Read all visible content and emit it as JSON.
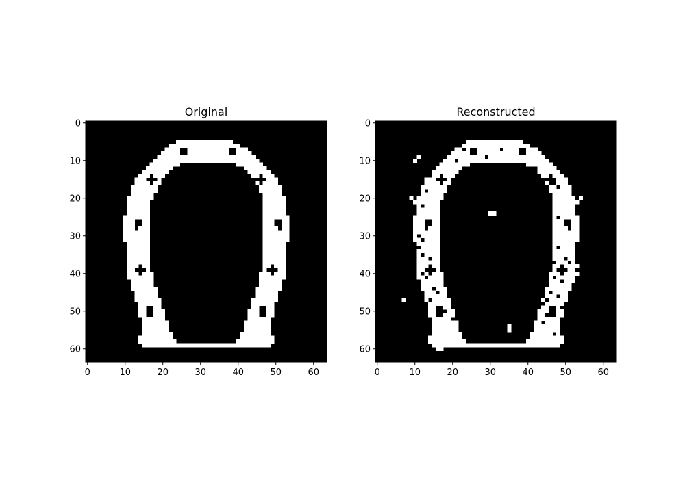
{
  "chart_data": [
    {
      "type": "heatmap",
      "title": "Original",
      "xlabel": "",
      "ylabel": "",
      "colormap": {
        "0": "#000000",
        "1": "#ffffff"
      },
      "xlim": [
        -0.5,
        63.5
      ],
      "ylim": [
        63.5,
        -0.5
      ],
      "xticks": [
        0,
        10,
        20,
        30,
        40,
        50,
        60
      ],
      "yticks": [
        0,
        10,
        20,
        30,
        40,
        50,
        60
      ],
      "grid": false,
      "shape": [
        64,
        64
      ],
      "white_runs_by_row": [
        [
          4,
          []
        ],
        [
          5,
          [
            [
              24,
              38
            ]
          ]
        ],
        [
          6,
          [
            [
              22,
              40
            ]
          ]
        ],
        [
          7,
          [
            [
              21,
              42
            ]
          ]
        ],
        [
          8,
          [
            [
              20,
              43
            ]
          ]
        ],
        [
          9,
          [
            [
              19,
              44
            ]
          ]
        ],
        [
          10,
          [
            [
              18,
              45
            ]
          ]
        ],
        [
          11,
          [
            [
              17,
              46
            ]
          ]
        ],
        [
          12,
          [
            [
              16,
              47
            ]
          ]
        ],
        [
          13,
          [
            [
              15,
              48
            ]
          ]
        ],
        [
          14,
          [
            [
              14,
              49
            ]
          ]
        ],
        [
          15,
          [
            [
              13,
              50
            ]
          ]
        ],
        [
          16,
          [
            [
              13,
              50
            ]
          ]
        ],
        [
          17,
          [
            [
              12,
              51
            ]
          ]
        ],
        [
          18,
          [
            [
              12,
              51
            ]
          ]
        ],
        [
          19,
          [
            [
              12,
              51
            ]
          ]
        ],
        [
          20,
          [
            [
              11,
              52
            ]
          ]
        ],
        [
          21,
          [
            [
              11,
              52
            ]
          ]
        ],
        [
          22,
          [
            [
              11,
              52
            ]
          ]
        ],
        [
          23,
          [
            [
              11,
              52
            ]
          ]
        ],
        [
          24,
          [
            [
              11,
              52
            ]
          ]
        ],
        [
          25,
          [
            [
              10,
              53
            ]
          ]
        ],
        [
          26,
          [
            [
              10,
              53
            ]
          ]
        ],
        [
          27,
          [
            [
              10,
              53
            ]
          ]
        ],
        [
          28,
          [
            [
              10,
              53
            ]
          ]
        ],
        [
          29,
          [
            [
              10,
              53
            ]
          ]
        ],
        [
          30,
          [
            [
              10,
              53
            ]
          ]
        ],
        [
          31,
          [
            [
              10,
              53
            ]
          ]
        ],
        [
          32,
          [
            [
              11,
              52
            ]
          ]
        ],
        [
          33,
          [
            [
              11,
              52
            ]
          ]
        ],
        [
          34,
          [
            [
              11,
              52
            ]
          ]
        ],
        [
          35,
          [
            [
              11,
              52
            ]
          ]
        ],
        [
          36,
          [
            [
              11,
              52
            ]
          ]
        ],
        [
          37,
          [
            [
              11,
              52
            ]
          ]
        ],
        [
          38,
          [
            [
              11,
              52
            ]
          ]
        ],
        [
          39,
          [
            [
              11,
              52
            ]
          ]
        ],
        [
          40,
          [
            [
              11,
              52
            ]
          ]
        ],
        [
          41,
          [
            [
              11,
              52
            ]
          ]
        ],
        [
          42,
          [
            [
              12,
              51
            ]
          ]
        ],
        [
          43,
          [
            [
              12,
              51
            ]
          ]
        ],
        [
          44,
          [
            [
              12,
              51
            ]
          ]
        ],
        [
          45,
          [
            [
              13,
              50
            ]
          ]
        ],
        [
          46,
          [
            [
              13,
              50
            ]
          ]
        ],
        [
          47,
          [
            [
              13,
              50
            ]
          ]
        ],
        [
          48,
          [
            [
              14,
              49
            ]
          ]
        ],
        [
          49,
          [
            [
              14,
              49
            ]
          ]
        ],
        [
          50,
          [
            [
              14,
              49
            ]
          ]
        ],
        [
          51,
          [
            [
              14,
              49
            ]
          ]
        ],
        [
          52,
          [
            [
              15,
              48
            ]
          ]
        ],
        [
          53,
          [
            [
              15,
              48
            ]
          ]
        ],
        [
          54,
          [
            [
              15,
              48
            ]
          ]
        ],
        [
          55,
          [
            [
              15,
              48
            ]
          ]
        ],
        [
          56,
          [
            [
              15,
              48
            ]
          ]
        ],
        [
          57,
          [
            [
              14,
              49
            ]
          ]
        ],
        [
          58,
          [
            [
              14,
              49
            ]
          ]
        ],
        [
          59,
          [
            [
              15,
              48
            ]
          ]
        ]
      ],
      "inner_boundary": [
        [
          11,
          25,
          39
        ],
        [
          12,
          23,
          41
        ],
        [
          13,
          22,
          42
        ],
        [
          14,
          21,
          43
        ],
        [
          15,
          20,
          44
        ],
        [
          16,
          20,
          44
        ],
        [
          17,
          19,
          45
        ],
        [
          18,
          19,
          45
        ],
        [
          19,
          18,
          46
        ],
        [
          20,
          18,
          46
        ],
        [
          21,
          17,
          46
        ],
        [
          22,
          17,
          46
        ],
        [
          23,
          17,
          46
        ],
        [
          24,
          17,
          46
        ],
        [
          25,
          17,
          46
        ],
        [
          26,
          17,
          46
        ],
        [
          27,
          17,
          46
        ],
        [
          28,
          17,
          46
        ],
        [
          29,
          17,
          46
        ],
        [
          30,
          17,
          46
        ],
        [
          31,
          17,
          46
        ],
        [
          32,
          17,
          46
        ],
        [
          33,
          17,
          46
        ],
        [
          34,
          17,
          46
        ],
        [
          35,
          17,
          46
        ],
        [
          36,
          17,
          46
        ],
        [
          37,
          17,
          46
        ],
        [
          38,
          17,
          46
        ],
        [
          39,
          17,
          46
        ],
        [
          40,
          18,
          45
        ],
        [
          41,
          18,
          45
        ],
        [
          42,
          18,
          45
        ],
        [
          43,
          18,
          45
        ],
        [
          44,
          19,
          44
        ],
        [
          45,
          19,
          44
        ],
        [
          46,
          19,
          44
        ],
        [
          47,
          20,
          43
        ],
        [
          48,
          20,
          43
        ],
        [
          49,
          20,
          43
        ],
        [
          50,
          21,
          42
        ],
        [
          51,
          21,
          42
        ],
        [
          52,
          21,
          42
        ],
        [
          53,
          22,
          41
        ],
        [
          54,
          22,
          41
        ],
        [
          55,
          22,
          41
        ],
        [
          56,
          23,
          40
        ],
        [
          57,
          23,
          40
        ],
        [
          58,
          24,
          39
        ],
        [
          59,
          40,
          23
        ]
      ],
      "holes": [
        [
          7,
          25
        ],
        [
          7,
          26
        ],
        [
          8,
          25
        ],
        [
          8,
          26
        ],
        [
          7,
          38
        ],
        [
          7,
          39
        ],
        [
          8,
          38
        ],
        [
          8,
          39
        ],
        [
          14,
          17
        ],
        [
          15,
          16
        ],
        [
          15,
          17
        ],
        [
          15,
          18
        ],
        [
          16,
          17
        ],
        [
          14,
          46
        ],
        [
          15,
          45
        ],
        [
          15,
          46
        ],
        [
          15,
          47
        ],
        [
          16,
          46
        ],
        [
          26,
          13
        ],
        [
          26,
          14
        ],
        [
          27,
          13
        ],
        [
          27,
          14
        ],
        [
          28,
          13
        ],
        [
          26,
          50
        ],
        [
          26,
          51
        ],
        [
          27,
          50
        ],
        [
          27,
          51
        ],
        [
          28,
          51
        ],
        [
          38,
          14
        ],
        [
          39,
          13
        ],
        [
          39,
          14
        ],
        [
          39,
          15
        ],
        [
          40,
          14
        ],
        [
          38,
          49
        ],
        [
          39,
          48
        ],
        [
          39,
          49
        ],
        [
          39,
          50
        ],
        [
          40,
          49
        ],
        [
          49,
          16
        ],
        [
          49,
          17
        ],
        [
          50,
          16
        ],
        [
          50,
          17
        ],
        [
          51,
          16
        ],
        [
          51,
          17
        ],
        [
          49,
          46
        ],
        [
          49,
          47
        ],
        [
          50,
          46
        ],
        [
          50,
          47
        ],
        [
          51,
          46
        ],
        [
          51,
          47
        ]
      ]
    },
    {
      "type": "heatmap",
      "title": "Reconstructed",
      "xlabel": "",
      "ylabel": "",
      "colormap": {
        "0": "#000000",
        "1": "#ffffff"
      },
      "xlim": [
        -0.5,
        63.5
      ],
      "ylim": [
        63.5,
        -0.5
      ],
      "xticks": [
        0,
        10,
        20,
        30,
        40,
        50,
        60
      ],
      "yticks": [
        0,
        10,
        20,
        30,
        40,
        50,
        60
      ],
      "grid": false,
      "shape": [
        64,
        64
      ],
      "based_on": "Original",
      "noise_on": [
        [
          7,
          30
        ],
        [
          9,
          11
        ],
        [
          10,
          10
        ],
        [
          20,
          9
        ],
        [
          21,
          10
        ],
        [
          24,
          30
        ],
        [
          24,
          31
        ],
        [
          47,
          7
        ],
        [
          54,
          35
        ],
        [
          55,
          35
        ],
        [
          20,
          54
        ],
        [
          21,
          53
        ],
        [
          22,
          52
        ],
        [
          38,
          53
        ],
        [
          39,
          52
        ],
        [
          40,
          53
        ],
        [
          42,
          52
        ],
        [
          44,
          51
        ],
        [
          60,
          16
        ],
        [
          60,
          17
        ]
      ],
      "noise_off": [
        [
          6,
          22
        ],
        [
          7,
          23
        ],
        [
          10,
          21
        ],
        [
          12,
          15
        ],
        [
          14,
          14
        ],
        [
          18,
          13
        ],
        [
          22,
          12
        ],
        [
          33,
          11
        ],
        [
          35,
          12
        ],
        [
          36,
          14
        ],
        [
          40,
          12
        ],
        [
          41,
          13
        ],
        [
          44,
          15
        ],
        [
          45,
          16
        ],
        [
          47,
          14
        ],
        [
          50,
          18
        ],
        [
          52,
          20
        ],
        [
          54,
          22
        ],
        [
          12,
          42
        ],
        [
          16,
          47
        ],
        [
          17,
          48
        ],
        [
          25,
          48
        ],
        [
          33,
          48
        ],
        [
          37,
          47
        ],
        [
          41,
          47
        ],
        [
          45,
          46
        ],
        [
          47,
          45
        ],
        [
          48,
          44
        ],
        [
          53,
          44
        ],
        [
          56,
          47
        ],
        [
          7,
          33
        ],
        [
          9,
          29
        ],
        [
          30,
          11
        ],
        [
          31,
          12
        ],
        [
          36,
          50
        ],
        [
          37,
          51
        ],
        [
          42,
          49
        ],
        [
          46,
          48
        ],
        [
          49,
          49
        ],
        [
          51,
          45
        ]
      ]
    }
  ]
}
